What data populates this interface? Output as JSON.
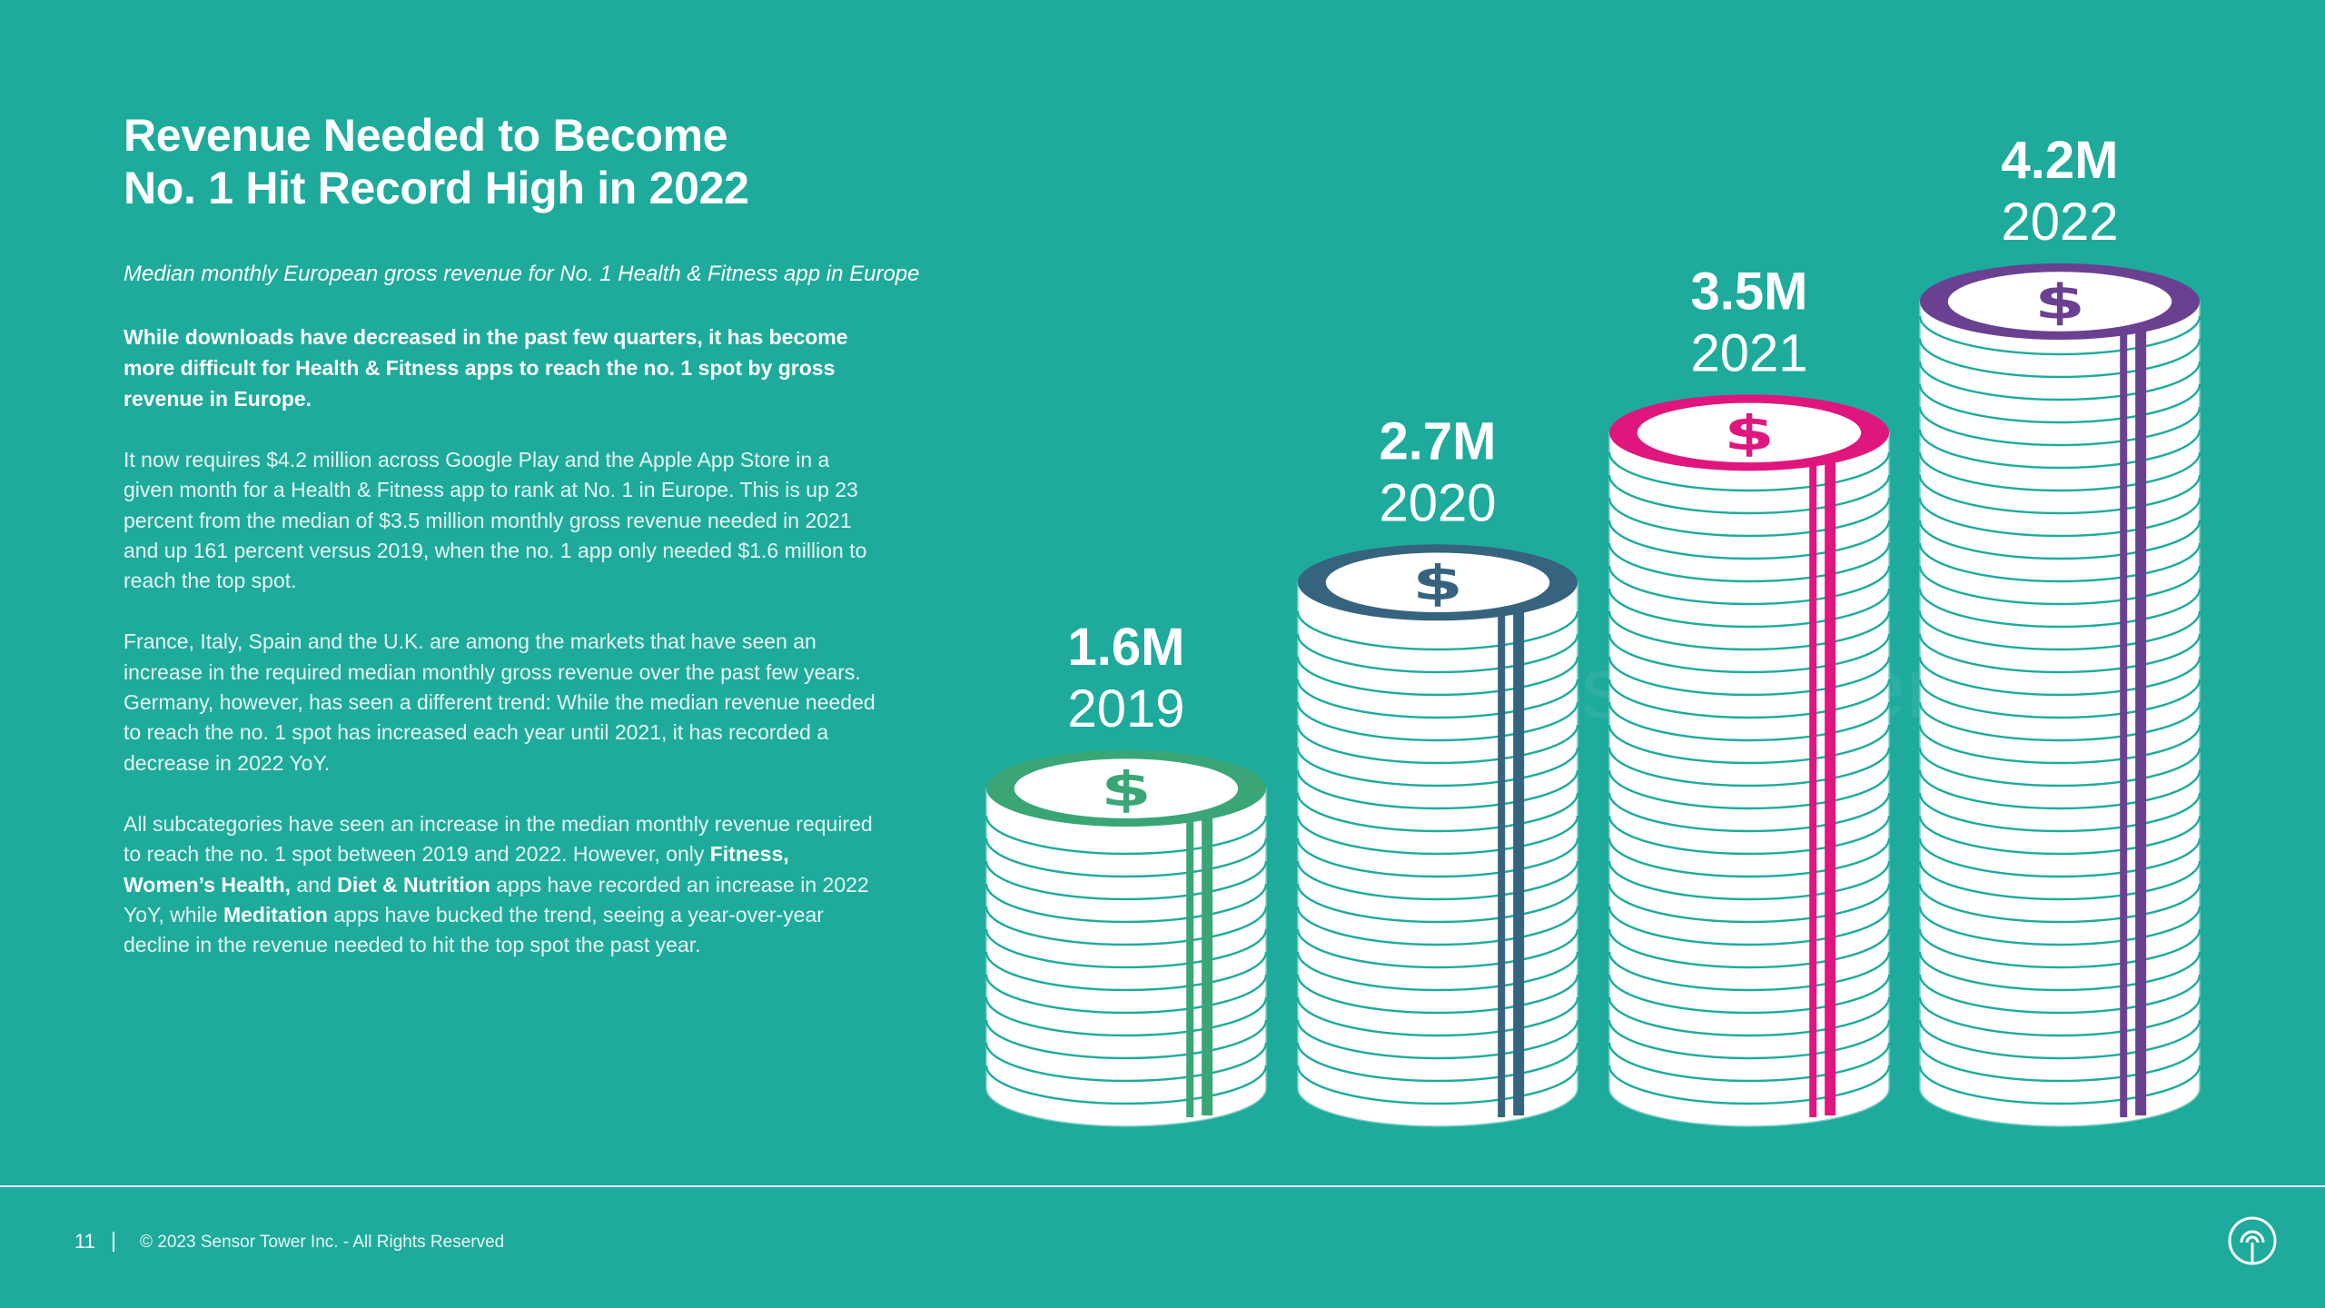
{
  "title": {
    "line1": "Revenue Needed to Become",
    "line2": "No. 1 Hit Record High in 2022"
  },
  "subtitle": "Median monthly European gross revenue for No. 1 Health & Fitness app in Europe",
  "intro_bold": "While downloads have decreased in the past few quarters, it has become more difficult for Health & Fitness apps to reach the no. 1 spot by gross revenue in Europe.",
  "paragraph1": "It now requires $4.2 million across Google Play and the Apple App Store in a given month for a Health & Fitness app to rank at No. 1 in Europe. This is up 23 percent from the median of $3.5 million monthly gross revenue needed in 2021 and up 161 percent versus 2019, when the no. 1 app only needed $1.6 million to reach the top spot.",
  "paragraph2": "France, Italy, Spain and the U.K. are among the markets that have seen an increase in the required median monthly gross revenue over the past few years. Germany, however, has seen a different trend: While the median revenue needed to reach the no. 1 spot has increased each year until 2021, it has recorded a decrease in 2022 YoY.",
  "paragraph3": {
    "part1": "All subcategories have seen an increase in the median monthly revenue required to reach the no. 1 spot between 2019 and 2022. However, only ",
    "bold1": "Fitness, Women’s Health,",
    "part2": " and ",
    "bold2": "Diet & Nutrition",
    "part3": " apps have recorded an increase in 2022 YoY, while ",
    "bold3": "Meditation",
    "part4": " apps have bucked the trend, seeing a year-over-year decline in the revenue needed to hit the top spot the past year."
  },
  "chart_data": {
    "type": "bar",
    "title": "Revenue Needed to Become No. 1",
    "categories": [
      "2019",
      "2020",
      "2021",
      "2022"
    ],
    "values": [
      1.6,
      2.7,
      3.5,
      4.2
    ],
    "value_labels": [
      "1.6M",
      "2.7M",
      "3.5M",
      "4.2M"
    ],
    "units": "USD millions",
    "coin_symbol": "$",
    "colors": [
      "#3aa676",
      "#36637e",
      "#e0167f",
      "#6a4191"
    ],
    "watermark": "SensorTower"
  },
  "footer": {
    "page_number": "11",
    "copyright": "© 2023 Sensor Tower Inc. - All Rights Reserved"
  },
  "brand_icon": "sensor-tower-logo-icon"
}
